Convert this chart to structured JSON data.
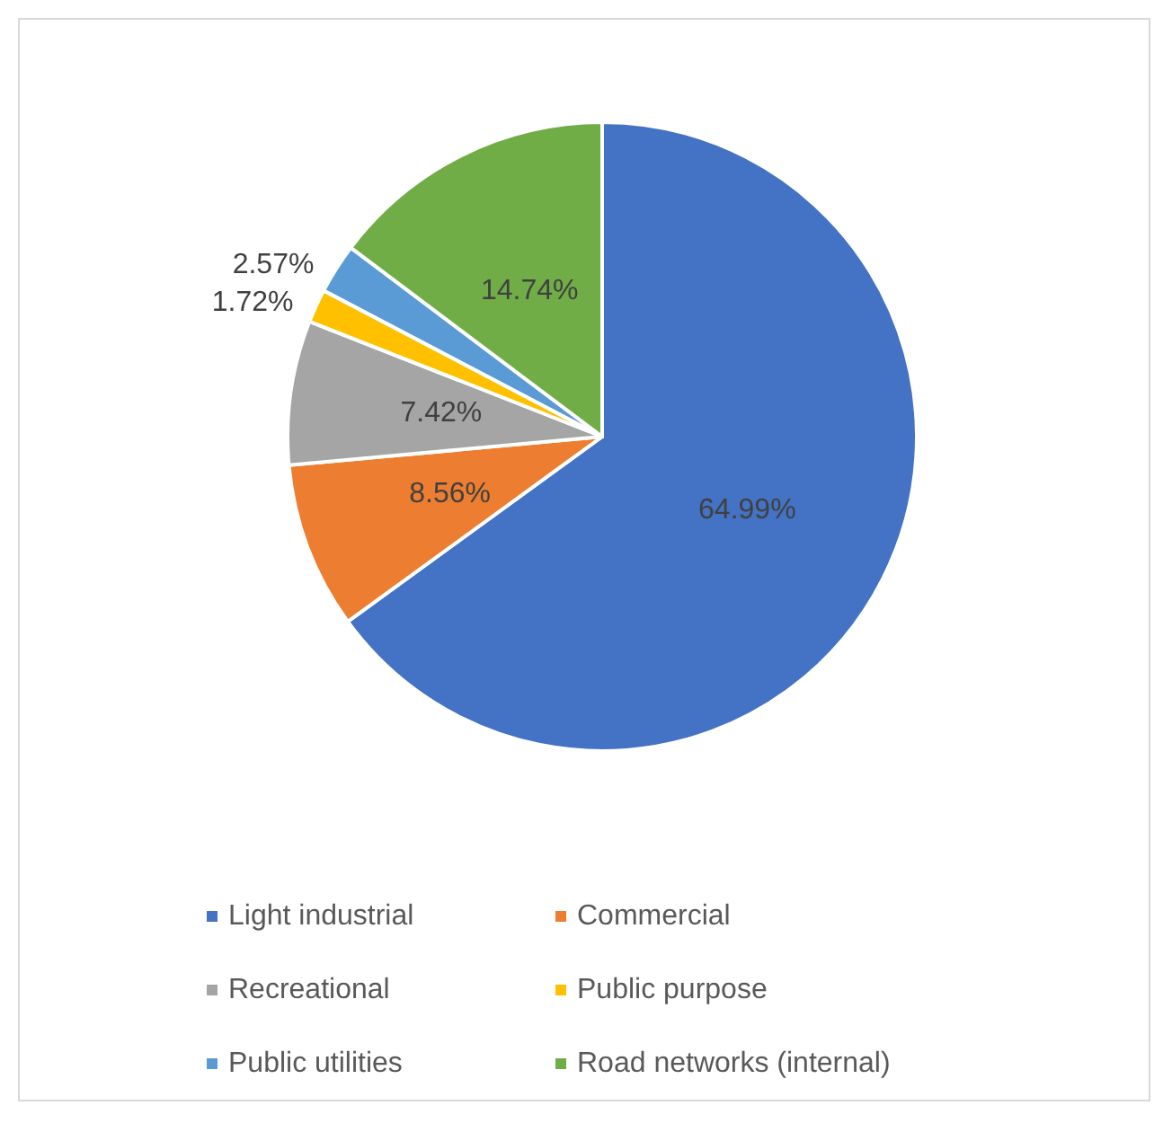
{
  "chart_data": {
    "type": "pie",
    "categories": [
      "Light industrial",
      "Commercial",
      "Recreational",
      "Public purpose",
      "Public utilities",
      "Road networks (internal)"
    ],
    "values": [
      64.99,
      8.56,
      7.42,
      1.72,
      2.57,
      14.74
    ],
    "value_labels": [
      "64.99%",
      "8.56%",
      "7.42%",
      "1.72%",
      "2.57%",
      "14.74%"
    ],
    "colors": [
      "#4472c4",
      "#ed7d31",
      "#a5a5a5",
      "#ffc000",
      "#5b9bd5",
      "#70ad47"
    ],
    "legend": "bottom"
  }
}
